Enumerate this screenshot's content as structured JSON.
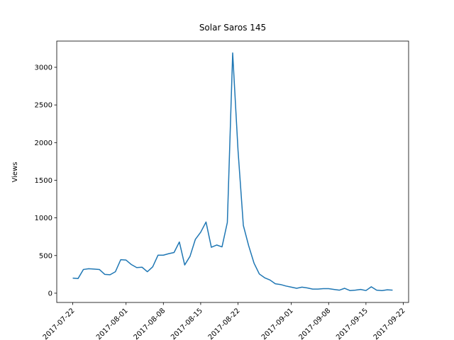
{
  "chart_data": {
    "type": "line",
    "title": "Solar Saros 145",
    "ylabel": "Views",
    "x": [
      "2017-07-22",
      "2017-07-23",
      "2017-07-24",
      "2017-07-25",
      "2017-07-26",
      "2017-07-27",
      "2017-07-28",
      "2017-07-29",
      "2017-07-30",
      "2017-07-31",
      "2017-08-01",
      "2017-08-02",
      "2017-08-03",
      "2017-08-04",
      "2017-08-05",
      "2017-08-06",
      "2017-08-07",
      "2017-08-08",
      "2017-08-09",
      "2017-08-10",
      "2017-08-11",
      "2017-08-12",
      "2017-08-13",
      "2017-08-14",
      "2017-08-15",
      "2017-08-16",
      "2017-08-17",
      "2017-08-18",
      "2017-08-19",
      "2017-08-20",
      "2017-08-21",
      "2017-08-22",
      "2017-08-23",
      "2017-08-24",
      "2017-08-25",
      "2017-08-26",
      "2017-08-27",
      "2017-08-28",
      "2017-08-29",
      "2017-08-30",
      "2017-08-31",
      "2017-09-01",
      "2017-09-02",
      "2017-09-03",
      "2017-09-04",
      "2017-09-05",
      "2017-09-06",
      "2017-09-07",
      "2017-09-08",
      "2017-09-09",
      "2017-09-10",
      "2017-09-11",
      "2017-09-12",
      "2017-09-13",
      "2017-09-14",
      "2017-09-15",
      "2017-09-16",
      "2017-09-17",
      "2017-09-18",
      "2017-09-19",
      "2017-09-20"
    ],
    "series": [
      {
        "name": "Views",
        "color": "#1f77b4",
        "values": [
          200,
          195,
          315,
          325,
          320,
          315,
          250,
          245,
          285,
          445,
          440,
          380,
          340,
          345,
          285,
          350,
          505,
          505,
          525,
          540,
          680,
          375,
          490,
          715,
          810,
          945,
          610,
          640,
          615,
          940,
          3190,
          1900,
          900,
          630,
          400,
          255,
          205,
          175,
          125,
          115,
          95,
          80,
          65,
          80,
          70,
          55,
          55,
          60,
          60,
          50,
          40,
          65,
          35,
          40,
          50,
          35,
          85,
          40,
          35,
          45,
          40
        ]
      }
    ],
    "xlim": [
      "2017-07-19",
      "2017-09-23"
    ],
    "xticks": [
      "2017-07-22",
      "2017-08-01",
      "2017-08-08",
      "2017-08-15",
      "2017-08-22",
      "2017-09-01",
      "2017-09-08",
      "2017-09-15",
      "2017-09-22"
    ],
    "ylim": [
      -123,
      3348
    ],
    "yticks": [
      0,
      500,
      1000,
      1500,
      2000,
      2500,
      3000
    ]
  }
}
